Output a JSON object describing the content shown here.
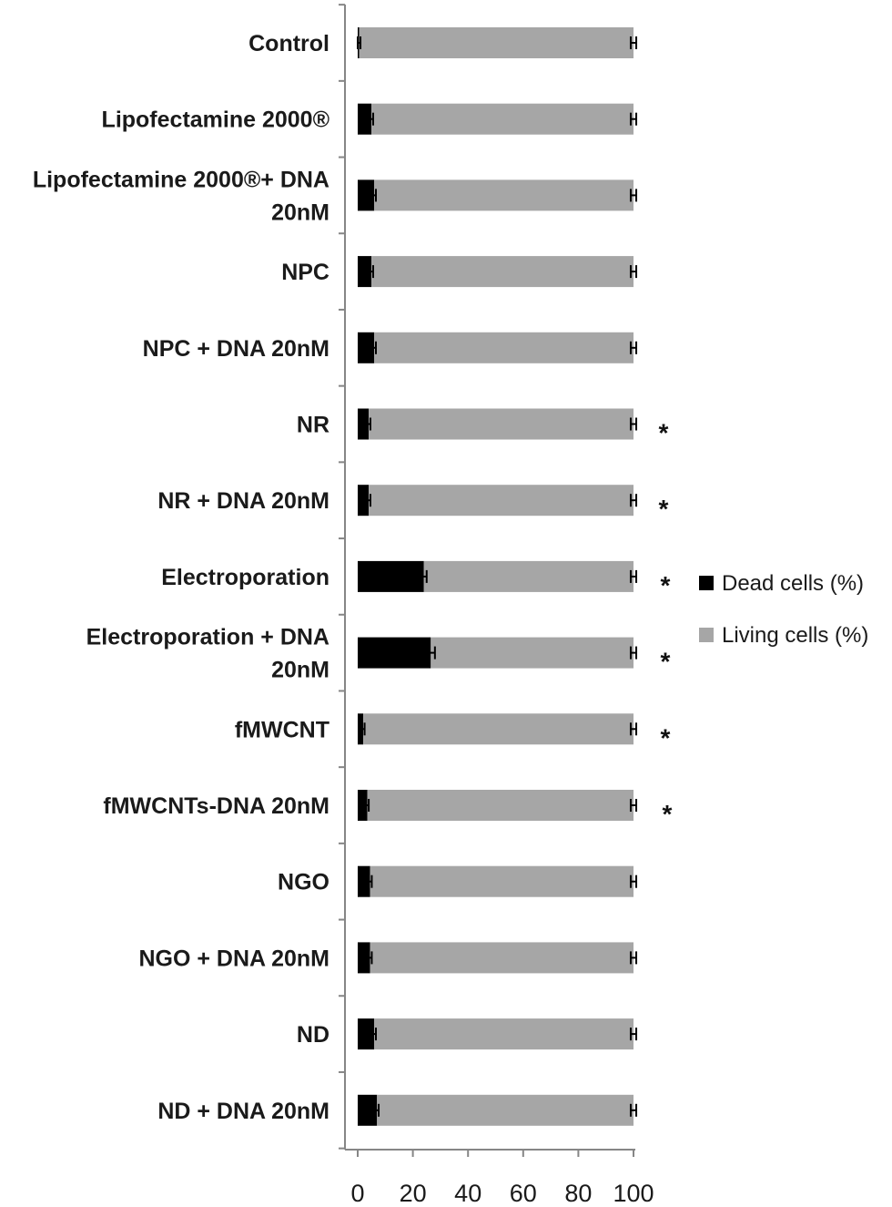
{
  "chart_data": {
    "type": "bar",
    "orientation": "horizontal",
    "stacked": true,
    "categories": [
      "Control",
      "Lipofectamine 2000®",
      "Lipofectamine 2000®+ DNA 20nM",
      "NPC",
      "NPC + DNA 20nM",
      "NR",
      "NR + DNA 20nM",
      "Electroporation",
      "Electroporation + DNA 20nM",
      "fMWCNT",
      "fMWCNTs-DNA 20nM",
      "NGO",
      "NGO + DNA 20nM",
      "ND",
      "ND + DNA 20nM"
    ],
    "category_lines": [
      [
        "Control"
      ],
      [
        "Lipofectamine 2000®"
      ],
      [
        "Lipofectamine 2000®+ DNA",
        "20nM"
      ],
      [
        "NPC"
      ],
      [
        "NPC + DNA 20nM"
      ],
      [
        "NR"
      ],
      [
        "NR + DNA 20nM"
      ],
      [
        "Electroporation"
      ],
      [
        "Electroporation + DNA",
        "20nM"
      ],
      [
        "fMWCNT"
      ],
      [
        "fMWCNTs-DNA 20nM"
      ],
      [
        "NGO"
      ],
      [
        "NGO + DNA 20nM"
      ],
      [
        "ND"
      ],
      [
        "ND + DNA 20nM"
      ]
    ],
    "series": [
      {
        "name": "Dead cells (%)",
        "color": "#000000",
        "values": [
          0.5,
          5,
          6,
          5,
          6,
          4,
          4,
          24,
          26.5,
          2,
          3.5,
          4.5,
          4.5,
          6,
          7
        ],
        "errors": [
          0.5,
          0.6,
          0.6,
          0.6,
          0.6,
          0.6,
          0.6,
          1,
          1.5,
          0.5,
          0.5,
          0.6,
          0.6,
          0.6,
          0.6
        ]
      },
      {
        "name": "Living cells (%)",
        "color": "#a6a6a6",
        "values": [
          99.5,
          95,
          94,
          95,
          94,
          96,
          96,
          76,
          73.5,
          98,
          96.5,
          95.5,
          95.5,
          94,
          93
        ],
        "errors": [
          1,
          1,
          1,
          1,
          1,
          1,
          1,
          1,
          1,
          1,
          1,
          1,
          1,
          1,
          1
        ]
      }
    ],
    "significance": [
      "",
      "",
      "",
      "",
      "",
      "*",
      "*",
      "*",
      "*",
      "*",
      "*",
      "",
      "",
      "",
      ""
    ],
    "xlim": [
      0,
      100
    ],
    "xticks": [
      "0",
      "20",
      "40",
      "60",
      "80",
      "100"
    ],
    "xticks_values": [
      0,
      20,
      40,
      60,
      80,
      100
    ],
    "xlabel": "",
    "ylabel": "",
    "title": "",
    "grid": false,
    "legend_position": "right"
  }
}
